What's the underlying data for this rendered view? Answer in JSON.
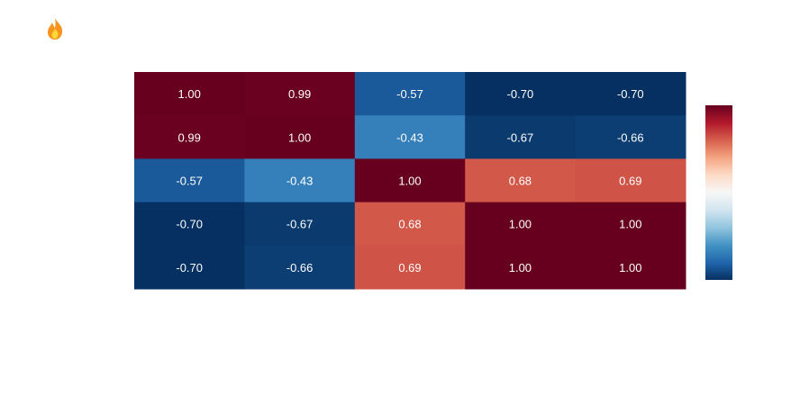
{
  "app": {
    "icon": "flame-icon"
  },
  "chart_data": {
    "type": "heatmap",
    "title": "",
    "xlabel": "",
    "ylabel": "",
    "x_categories": [
      "",
      "",
      "",
      "",
      ""
    ],
    "y_categories": [
      "",
      "",
      "",
      "",
      ""
    ],
    "values": [
      [
        1.0,
        0.99,
        -0.57,
        -0.7,
        -0.7
      ],
      [
        0.99,
        1.0,
        -0.43,
        -0.67,
        -0.66
      ],
      [
        -0.57,
        -0.43,
        1.0,
        0.68,
        0.69
      ],
      [
        -0.7,
        -0.67,
        0.68,
        1.0,
        1.0
      ],
      [
        -0.7,
        -0.66,
        0.69,
        1.0,
        1.0
      ]
    ],
    "labels": [
      [
        "1.00",
        "0.99",
        "-0.57",
        "-0.70",
        "-0.70"
      ],
      [
        "0.99",
        "1.00",
        "-0.43",
        "-0.67",
        "-0.66"
      ],
      [
        "-0.57",
        "-0.43",
        "1.00",
        "0.68",
        "0.69"
      ],
      [
        "-0.70",
        "-0.67",
        "0.68",
        "1.00",
        "1.00"
      ],
      [
        "-0.70",
        "-0.66",
        "0.69",
        "1.00",
        "1.00"
      ]
    ],
    "colorscale": "RdBu",
    "zlim": [
      -0.7,
      1.0
    ],
    "colorbar": {
      "show": true,
      "ticks": []
    },
    "colors": {
      "low": "#053061",
      "high": "#67001f",
      "text": "#ffffff"
    }
  }
}
